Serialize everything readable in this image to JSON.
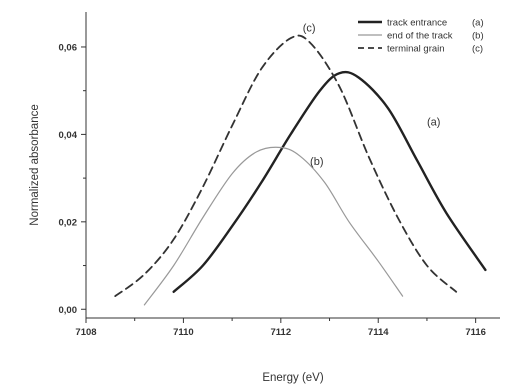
{
  "chart_data": {
    "type": "line",
    "xlabel": "Energy (eV)",
    "ylabel": "Normalized absorbance",
    "xlim": [
      7108,
      7116.5
    ],
    "ylim": [
      -0.002,
      0.068
    ],
    "xticks": [
      7108,
      7110,
      7112,
      7114,
      7116
    ],
    "yticks": [
      0.0,
      0.02,
      0.04,
      0.06
    ],
    "xtick_labels": [
      "7108",
      "7110",
      "7112",
      "7114",
      "7116"
    ],
    "ytick_labels": [
      "0,00",
      "0,02",
      "0,04",
      "0,06"
    ],
    "grid": false,
    "legend_position": "top-right",
    "series": [
      {
        "name": "track entrance",
        "legend_tag": "(a)",
        "annotation": "(a)",
        "style": "solid-thick",
        "color": "#222222",
        "x": [
          7109.8,
          7110.4,
          7111.0,
          7111.6,
          7112.2,
          7112.8,
          7113.2,
          7113.6,
          7114.2,
          7114.8,
          7115.4,
          7116.2
        ],
        "y": [
          0.004,
          0.01,
          0.019,
          0.029,
          0.04,
          0.05,
          0.054,
          0.053,
          0.046,
          0.034,
          0.022,
          0.009
        ]
      },
      {
        "name": "end of the track",
        "legend_tag": "(b)",
        "annotation": "(b)",
        "style": "solid-thin",
        "color": "#999999",
        "x": [
          7109.2,
          7109.8,
          7110.4,
          7111.0,
          7111.5,
          7112.0,
          7112.4,
          7112.9,
          7113.4,
          7114.0,
          7114.5
        ],
        "y": [
          0.001,
          0.01,
          0.021,
          0.031,
          0.036,
          0.037,
          0.035,
          0.029,
          0.02,
          0.011,
          0.003
        ]
      },
      {
        "name": "terminal grain",
        "legend_tag": "(c)",
        "annotation": "(c)",
        "style": "dashed",
        "color": "#333333",
        "x": [
          7108.6,
          7109.2,
          7109.8,
          7110.4,
          7111.0,
          7111.6,
          7112.2,
          7112.6,
          7113.2,
          7113.8,
          7114.4,
          7115.0,
          7115.6
        ],
        "y": [
          0.003,
          0.008,
          0.016,
          0.028,
          0.042,
          0.055,
          0.062,
          0.061,
          0.051,
          0.035,
          0.021,
          0.01,
          0.004
        ]
      }
    ]
  }
}
